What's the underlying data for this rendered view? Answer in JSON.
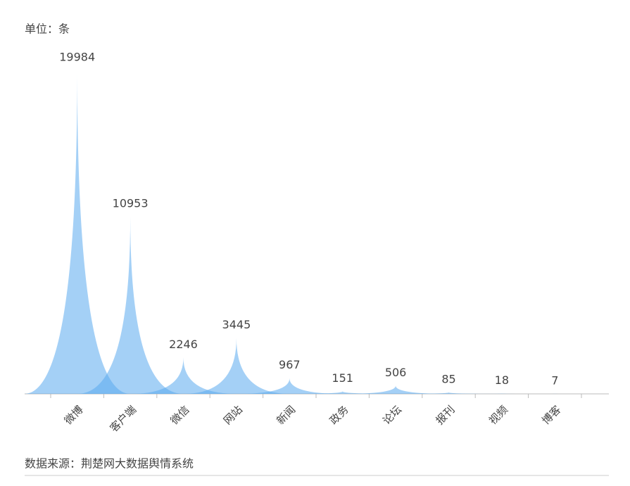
{
  "chart_data": {
    "type": "pictorial-bar",
    "unit_label": "单位：条",
    "source": "数据来源：荆楚网大数据舆情系统",
    "categories": [
      "微博",
      "客户端",
      "微信",
      "网站",
      "新闻",
      "政务",
      "论坛",
      "报刊",
      "视频",
      "博客"
    ],
    "values": [
      19984,
      10953,
      2246,
      3445,
      967,
      151,
      506,
      85,
      18,
      7
    ],
    "color": "#5aa9ee"
  }
}
